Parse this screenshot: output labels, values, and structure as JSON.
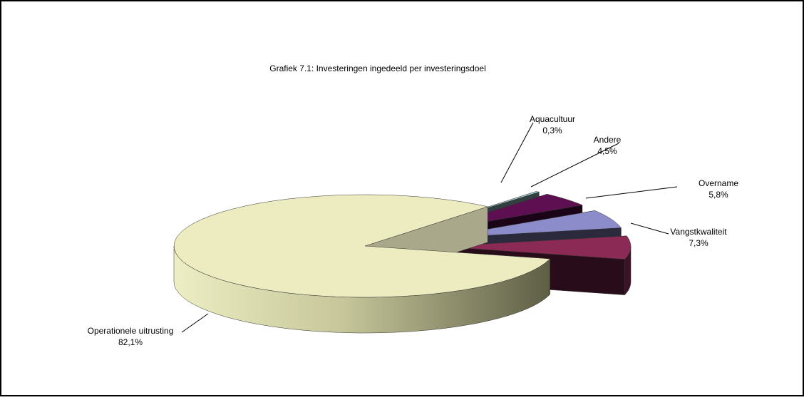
{
  "chart_data": {
    "type": "pie",
    "title": "Grafiek 7.1: Investeringen ingedeeld per investeringsdoel",
    "categories": [
      "Aquacultuur",
      "Andere",
      "Overname",
      "Vangstkwaliteit",
      "Operationele uitrusting"
    ],
    "values": [
      0.3,
      4.5,
      5.8,
      7.3,
      82.1
    ],
    "value_labels": [
      "0,3%",
      "4,5%",
      "5,8%",
      "7,3%",
      "82,1%"
    ],
    "colors": [
      "#a9d2d2",
      "#5d0f52",
      "#8c8cca",
      "#8b2a55",
      "#ececc0"
    ]
  }
}
